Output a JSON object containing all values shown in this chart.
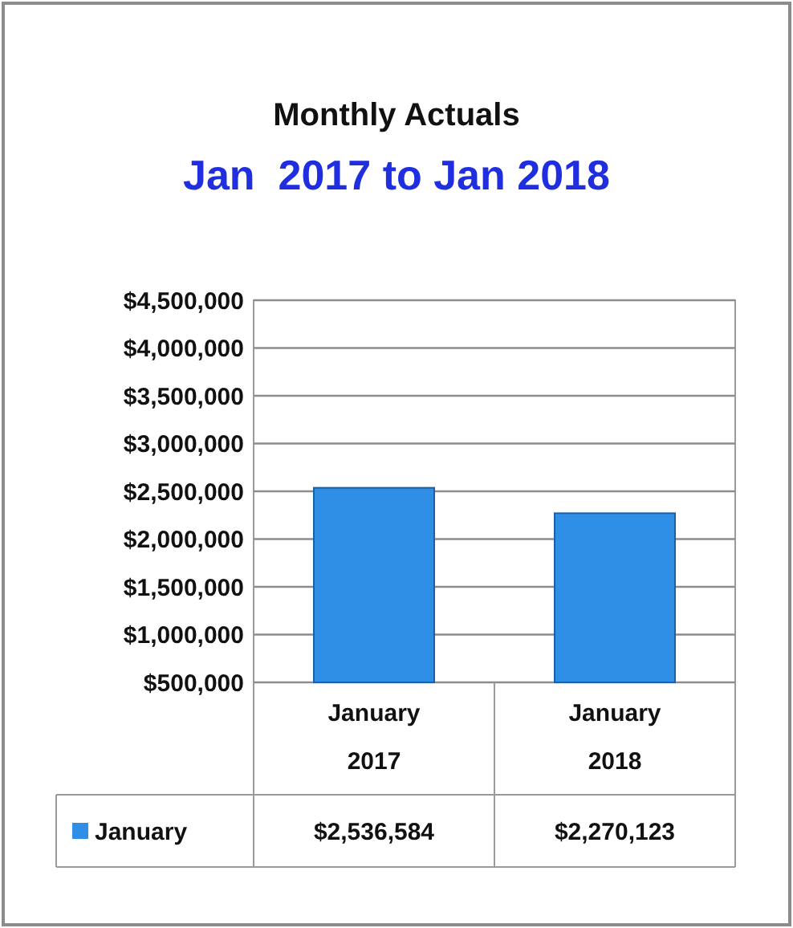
{
  "chart_data": {
    "type": "bar",
    "title": "Monthly Actuals",
    "subtitle": "Jan  2017 to Jan 2018",
    "categories": [
      "January 2017",
      "January 2018"
    ],
    "series": [
      {
        "name": "January",
        "color": "#2f8ee6",
        "values": [
          2536584,
          2270123
        ],
        "value_labels": [
          "$2,536,584",
          "$2,270,123"
        ]
      }
    ],
    "ylim": [
      500000,
      4500000
    ],
    "yticks": [
      {
        "value": 500000,
        "label": "$500,000"
      },
      {
        "value": 1000000,
        "label": "$1,000,000"
      },
      {
        "value": 1500000,
        "label": "$1,500,000"
      },
      {
        "value": 2000000,
        "label": "$2,000,000"
      },
      {
        "value": 2500000,
        "label": "$2,500,000"
      },
      {
        "value": 3000000,
        "label": "$3,000,000"
      },
      {
        "value": 3500000,
        "label": "$3,500,000"
      },
      {
        "value": 4000000,
        "label": "$4,000,000"
      },
      {
        "value": 4500000,
        "label": "$4,500,000"
      }
    ],
    "grid": "y",
    "legend": "bottom left"
  }
}
